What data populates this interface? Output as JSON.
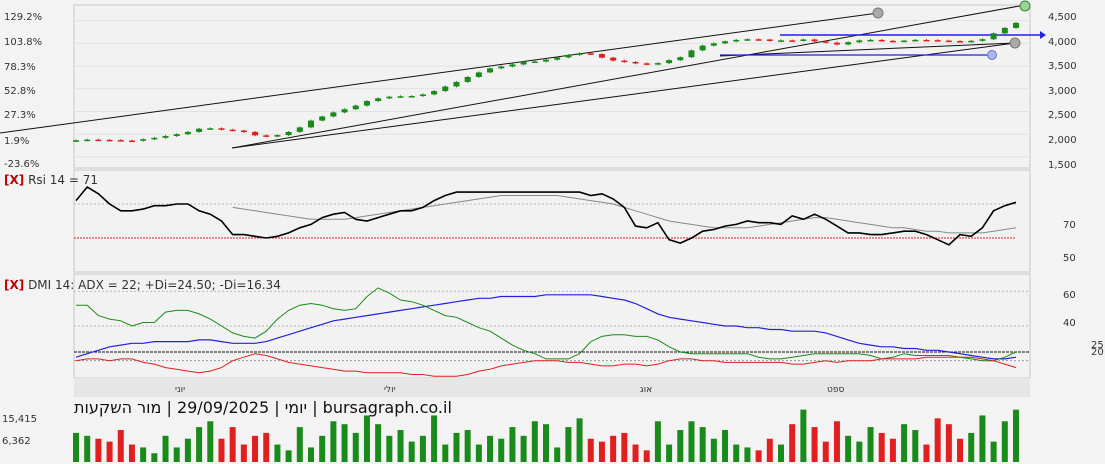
{
  "caption": "יומי | 29/09/2025 | מור השקעות | bursagraph.co.il",
  "colors": {
    "up": "#1a8a1a",
    "down": "#e02020",
    "rsi": "#000000",
    "rsi_ma": "#888888",
    "adx": "#2222dd",
    "plus_di": "#1a8a1a",
    "minus_di": "#e02020",
    "volume_up": "#1a8a1a",
    "volume_down": "#e02020",
    "close_marker": "#1a8a1a"
  },
  "price_panel": {
    "left_ticks": [
      "129.2%",
      "103.8%",
      "78.3%",
      "52.8%",
      "27.3%",
      "1.9%",
      "-23.6%"
    ],
    "right_ticks": [
      "4,500",
      "4,000",
      "3,500",
      "3,000",
      "2,500",
      "2,000",
      "1,500"
    ]
  },
  "rsi_panel": {
    "close_button": "[X]",
    "title": "Rsi 14 = 71",
    "levels": [
      "70",
      "50"
    ]
  },
  "dmi_panel": {
    "close_button": "[X]",
    "title": "DMI 14: ADX = 22; +Di=24.50; -Di=16.34",
    "levels": [
      "60",
      "40",
      "25",
      "20"
    ]
  },
  "x_axis": {
    "months": [
      "יוני",
      "יולי",
      "אוג",
      "ספט"
    ]
  },
  "volume_panel": {
    "ticks": [
      "15,415",
      "6,362"
    ]
  },
  "chart_data": {
    "type": "candlestick",
    "price": {
      "close": [
        1865,
        1880,
        1875,
        1870,
        1860,
        1855,
        1890,
        1920,
        1960,
        2000,
        2050,
        2120,
        2130,
        2100,
        2080,
        2050,
        1975,
        1955,
        1980,
        2050,
        2150,
        2300,
        2390,
        2480,
        2550,
        2630,
        2730,
        2790,
        2825,
        2835,
        2840,
        2875,
        2950,
        3050,
        3150,
        3260,
        3360,
        3450,
        3490,
        3535,
        3595,
        3600,
        3640,
        3690,
        3745,
        3780,
        3765,
        3685,
        3620,
        3590,
        3560,
        3540,
        3565,
        3630,
        3695,
        3845,
        3950,
        4000,
        4045,
        4075,
        4090,
        4085,
        4055,
        4065,
        4060,
        4085,
        4045,
        4015,
        3975,
        4025,
        4065,
        4075,
        4055,
        4045,
        4060,
        4075,
        4070,
        4060,
        4050,
        4040,
        4055,
        4090,
        4220,
        4340,
        4450
      ],
      "ylim": [
        1300,
        4800
      ]
    },
    "rsi": {
      "values": [
        72,
        80,
        76,
        70,
        66,
        66,
        67,
        69,
        69,
        70,
        70,
        66,
        64,
        60,
        52,
        52,
        51,
        50,
        51,
        53,
        56,
        58,
        62,
        64,
        65,
        61,
        60,
        62,
        64,
        66,
        66,
        68,
        72,
        75,
        77,
        77,
        77,
        77,
        77,
        77,
        77,
        77,
        77,
        77,
        77,
        77,
        75,
        76,
        73,
        68,
        57,
        56,
        59,
        49,
        47,
        50,
        54,
        55,
        57,
        58,
        60,
        59,
        59,
        58,
        63,
        61,
        64,
        61,
        57,
        53,
        53,
        52,
        52,
        53,
        54,
        54,
        52,
        49,
        46,
        52,
        51,
        56,
        66,
        69,
        71
      ],
      "ma": [
        null,
        null,
        null,
        null,
        null,
        null,
        null,
        null,
        null,
        null,
        null,
        null,
        null,
        null,
        68,
        67,
        66,
        65,
        64,
        63,
        62,
        61,
        61,
        61,
        61,
        62,
        63,
        64,
        65,
        66,
        67,
        68,
        69,
        70,
        71,
        72,
        73,
        74,
        75,
        75,
        75,
        75,
        75,
        75,
        74,
        73,
        72,
        71,
        70,
        68,
        66,
        64,
        62,
        60,
        59,
        58,
        57,
        56,
        56,
        56,
        56,
        57,
        58,
        59,
        60,
        61,
        62,
        62,
        61,
        60,
        59,
        58,
        57,
        56,
        56,
        55,
        54,
        54,
        53,
        53,
        53,
        53,
        54,
        55,
        56
      ],
      "levels": [
        70,
        50
      ]
    },
    "dmi": {
      "adx": [
        22,
        24,
        26,
        28,
        29,
        30,
        30,
        31,
        31,
        31,
        31,
        32,
        32,
        31,
        30,
        30,
        30,
        31,
        33,
        35,
        37,
        39,
        41,
        43,
        44,
        45,
        46,
        47,
        48,
        49,
        50,
        51,
        52,
        53,
        54,
        55,
        56,
        56,
        57,
        57,
        57,
        57,
        58,
        58,
        58,
        58,
        58,
        57,
        56,
        55,
        53,
        50,
        47,
        45,
        44,
        43,
        42,
        41,
        40,
        40,
        39,
        39,
        38,
        38,
        37,
        37,
        37,
        36,
        34,
        32,
        30,
        29,
        28,
        28,
        27,
        27,
        26,
        26,
        25,
        24,
        23,
        22,
        21,
        21,
        22
      ],
      "plus_di": [
        52,
        52,
        46,
        44,
        43,
        40,
        42,
        42,
        48,
        49,
        49,
        47,
        44,
        40,
        36,
        34,
        33,
        37,
        44,
        49,
        52,
        53,
        52,
        50,
        49,
        50,
        57,
        62,
        59,
        55,
        54,
        52,
        49,
        46,
        45,
        42,
        39,
        37,
        33,
        29,
        26,
        24,
        21,
        21,
        21,
        24,
        31,
        34,
        35,
        35,
        34,
        34,
        32,
        28,
        25,
        24,
        24,
        24,
        24,
        24,
        24,
        22,
        21,
        21,
        22,
        23,
        24,
        24,
        24,
        24,
        24,
        23,
        21,
        22,
        24,
        23,
        23,
        23,
        23,
        22,
        21,
        20,
        20,
        22,
        25
      ],
      "minus_di": [
        20,
        21,
        21,
        20,
        21,
        21,
        19,
        18,
        16,
        15,
        14,
        13,
        14,
        16,
        20,
        22,
        24,
        23,
        21,
        19,
        18,
        17,
        16,
        15,
        14,
        14,
        13,
        13,
        13,
        13,
        12,
        12,
        11,
        11,
        11,
        12,
        14,
        15,
        17,
        18,
        19,
        20,
        20,
        20,
        19,
        19,
        18,
        17,
        17,
        18,
        18,
        17,
        18,
        20,
        21,
        21,
        20,
        20,
        19,
        19,
        19,
        19,
        19,
        19,
        18,
        18,
        19,
        20,
        19,
        20,
        20,
        20,
        21,
        21,
        21,
        21,
        22,
        22,
        22,
        22,
        22,
        21,
        20,
        18,
        16
      ],
      "levels": [
        60,
        40,
        25,
        20
      ]
    },
    "volume": {
      "values": [
        10,
        9,
        8,
        7,
        11,
        6,
        5,
        3,
        9,
        5,
        8,
        12,
        14,
        8,
        12,
        6,
        9,
        10,
        6,
        4,
        12,
        5,
        9,
        14,
        13,
        10,
        16,
        13,
        9,
        11,
        7,
        9,
        16,
        6,
        10,
        11,
        6,
        9,
        8,
        12,
        9,
        14,
        13,
        5,
        12,
        15,
        8,
        7,
        9,
        10,
        6,
        4,
        14,
        6,
        11,
        14,
        12,
        8,
        11,
        6,
        5,
        4,
        8,
        6,
        13,
        18,
        12,
        7,
        14,
        9,
        7,
        12,
        10,
        8,
        13,
        11,
        6,
        15,
        13,
        8,
        10,
        16,
        7,
        14,
        18
      ],
      "ticks": [
        15415,
        6362
      ],
      "ylim": [
        0,
        22
      ]
    }
  }
}
